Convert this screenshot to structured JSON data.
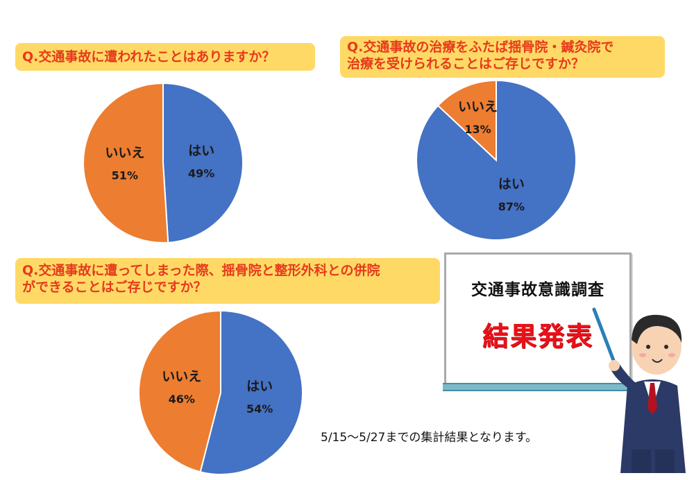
{
  "questions": {
    "q1": "Q.交通事故に遭われたことはありますか？",
    "q2_line1": "Q.交通事故の治療をふたば揺骨院・鍼灸院で",
    "q2_line2": "治療を受けられることはご存じですか？",
    "q3_line1": "Q.交通事故に遭ってしまった際、揺骨院と整形外科との併院",
    "q3_line2": "ができることはご存じですか？"
  },
  "board": {
    "title": "交通事故意識調査",
    "headline": "結果発表"
  },
  "footnote": "5/15～5/27までの集計結果となります。",
  "colors": {
    "yes": "#4472c4",
    "no": "#ed7d31",
    "question_bg": "#ffd966",
    "question_text": "#e53a1c"
  },
  "icons": {
    "presenter": "businessman-pointing-icon"
  },
  "chart_data": [
    {
      "type": "pie",
      "title": "Q.交通事故に遭われたことはありますか？",
      "slices": [
        {
          "label": "はい",
          "value": 49,
          "display": "49%",
          "color": "#4472c4"
        },
        {
          "label": "いいえ",
          "value": 51,
          "display": "51%",
          "color": "#ed7d31"
        }
      ]
    },
    {
      "type": "pie",
      "title": "Q.交通事故の治療をふたば揺骨院・鍼灸院で治療を受けられることはご存じですか？",
      "slices": [
        {
          "label": "はい",
          "value": 87,
          "display": "87%",
          "color": "#4472c4"
        },
        {
          "label": "いいえ",
          "value": 13,
          "display": "13%",
          "color": "#ed7d31"
        }
      ]
    },
    {
      "type": "pie",
      "title": "Q.交通事故に遭ってしまった際、揺骨院と整形外科との併院ができることはご存じですか？",
      "slices": [
        {
          "label": "はい",
          "value": 54,
          "display": "54%",
          "color": "#4472c4"
        },
        {
          "label": "いいえ",
          "value": 46,
          "display": "46%",
          "color": "#ed7d31"
        }
      ]
    }
  ]
}
